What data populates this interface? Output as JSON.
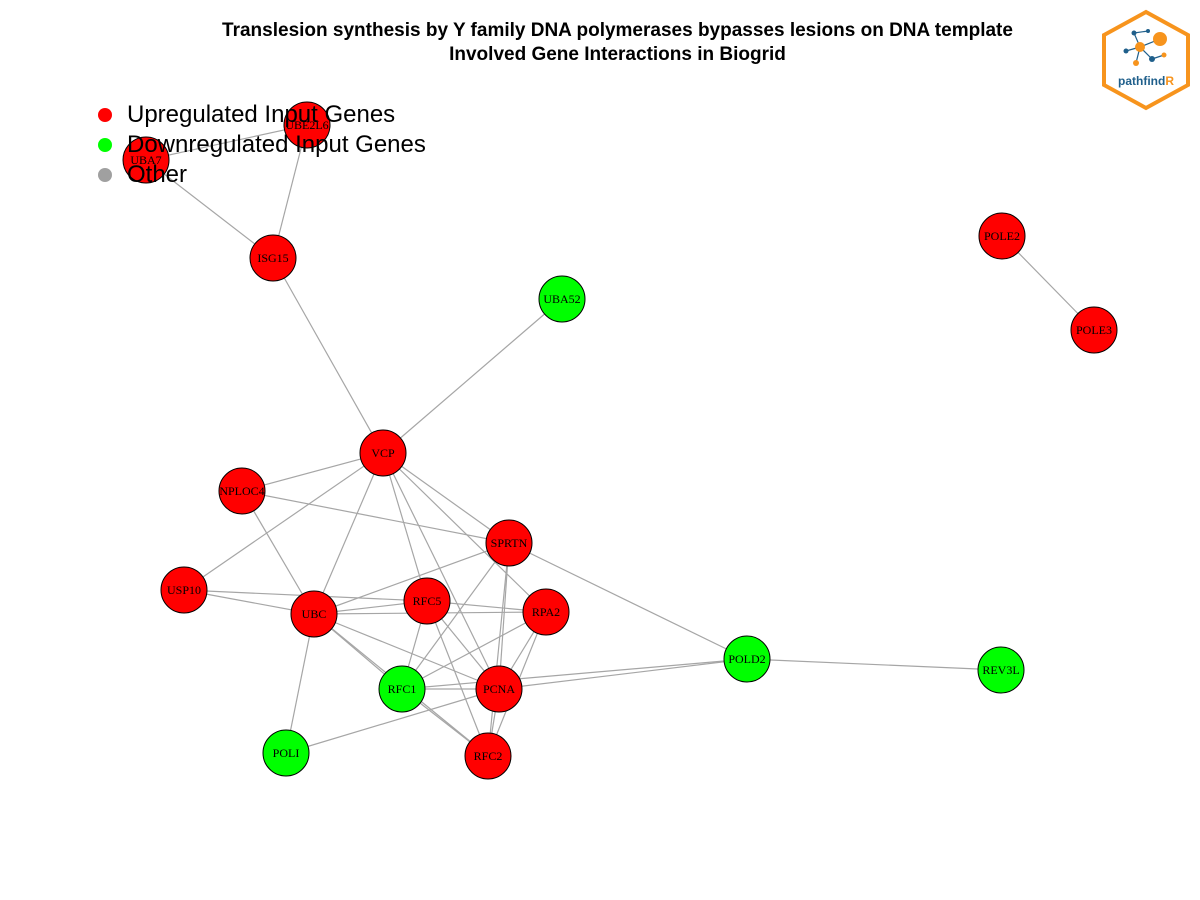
{
  "title": {
    "line1": "Translesion synthesis by Y family DNA polymerases bypasses lesions on DNA template",
    "line2": "Involved Gene Interactions in Biogrid"
  },
  "legend": [
    {
      "label": "Upregulated Input Genes",
      "color": "#ff0000"
    },
    {
      "label": "Downregulated Input Genes",
      "color": "#00ff00"
    },
    {
      "label": "Other",
      "color": "#a0a0a0"
    }
  ],
  "logo": {
    "text_main": "pathfind",
    "text_accent": "R",
    "frame_color": "#f7941d",
    "text_color": "#1f5f8b"
  },
  "colors": {
    "up": "#ff0000",
    "down": "#00ff00",
    "edge": "#a6a6a6",
    "border": "#000000"
  },
  "network": {
    "nodes": [
      {
        "id": "UBE2L6",
        "label": "UBE2L6",
        "status": "up"
      },
      {
        "id": "UBA7",
        "label": "UBA7",
        "status": "up"
      },
      {
        "id": "ISG15",
        "label": "ISG15",
        "status": "up"
      },
      {
        "id": "UBA52",
        "label": "UBA52",
        "status": "down"
      },
      {
        "id": "POLE2",
        "label": "POLE2",
        "status": "up"
      },
      {
        "id": "POLE3",
        "label": "POLE3",
        "status": "up"
      },
      {
        "id": "VCP",
        "label": "VCP",
        "status": "up"
      },
      {
        "id": "NPLOC4",
        "label": "NPLOC4",
        "status": "up"
      },
      {
        "id": "SPRTN",
        "label": "SPRTN",
        "status": "up"
      },
      {
        "id": "USP10",
        "label": "USP10",
        "status": "up"
      },
      {
        "id": "UBC",
        "label": "UBC",
        "status": "up"
      },
      {
        "id": "RFC5",
        "label": "RFC5",
        "status": "up"
      },
      {
        "id": "RPA2",
        "label": "RPA2",
        "status": "up"
      },
      {
        "id": "POLD2",
        "label": "POLD2",
        "status": "down"
      },
      {
        "id": "REV3L",
        "label": "REV3L",
        "status": "down"
      },
      {
        "id": "RFC1",
        "label": "RFC1",
        "status": "down"
      },
      {
        "id": "PCNA",
        "label": "PCNA",
        "status": "up"
      },
      {
        "id": "POLI",
        "label": "POLI",
        "status": "down"
      },
      {
        "id": "RFC2",
        "label": "RFC2",
        "status": "up"
      }
    ],
    "edges": [
      [
        "UBE2L6",
        "UBA7"
      ],
      [
        "UBE2L6",
        "ISG15"
      ],
      [
        "UBA7",
        "ISG15"
      ],
      [
        "ISG15",
        "VCP"
      ],
      [
        "UBA52",
        "VCP"
      ],
      [
        "POLE2",
        "POLE3"
      ],
      [
        "VCP",
        "NPLOC4"
      ],
      [
        "VCP",
        "SPRTN"
      ],
      [
        "VCP",
        "USP10"
      ],
      [
        "VCP",
        "UBC"
      ],
      [
        "VCP",
        "RFC5"
      ],
      [
        "VCP",
        "RPA2"
      ],
      [
        "VCP",
        "PCNA"
      ],
      [
        "NPLOC4",
        "SPRTN"
      ],
      [
        "NPLOC4",
        "UBC"
      ],
      [
        "SPRTN",
        "UBC"
      ],
      [
        "SPRTN",
        "PCNA"
      ],
      [
        "SPRTN",
        "POLD2"
      ],
      [
        "SPRTN",
        "RFC1"
      ],
      [
        "SPRTN",
        "RFC2"
      ],
      [
        "USP10",
        "UBC"
      ],
      [
        "USP10",
        "RFC5"
      ],
      [
        "UBC",
        "RFC5"
      ],
      [
        "UBC",
        "RPA2"
      ],
      [
        "UBC",
        "PCNA"
      ],
      [
        "UBC",
        "RFC2"
      ],
      [
        "UBC",
        "POLI"
      ],
      [
        "UBC",
        "RFC1"
      ],
      [
        "RFC5",
        "RPA2"
      ],
      [
        "RFC5",
        "RFC1"
      ],
      [
        "RFC5",
        "PCNA"
      ],
      [
        "RFC5",
        "RFC2"
      ],
      [
        "RPA2",
        "RFC1"
      ],
      [
        "RPA2",
        "PCNA"
      ],
      [
        "RPA2",
        "RFC2"
      ],
      [
        "RFC1",
        "PCNA"
      ],
      [
        "RFC1",
        "RFC2"
      ],
      [
        "PCNA",
        "POLD2"
      ],
      [
        "PCNA",
        "POLI"
      ],
      [
        "PCNA",
        "RFC2"
      ],
      [
        "POLD2",
        "REV3L"
      ],
      [
        "RFC1",
        "POLD2"
      ]
    ]
  }
}
